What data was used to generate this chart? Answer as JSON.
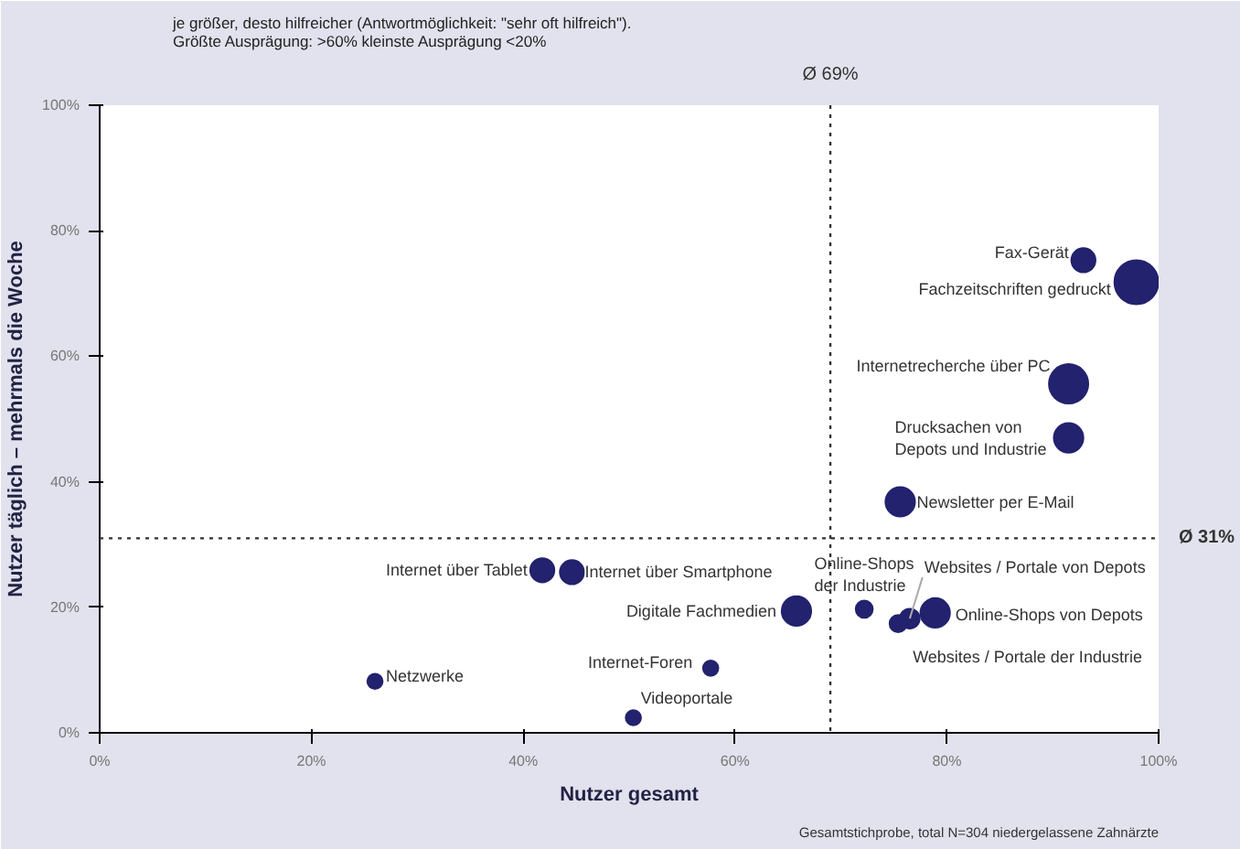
{
  "chart_data": {
    "type": "bubble",
    "xlabel": "Nutzer gesamt",
    "ylabel": "Nutzer täglich – mehrmals die Woche",
    "relative": false,
    "series": [
      {
        "name": "Fax-Gerät",
        "color": "#22226e",
        "x": [
          92.9
        ],
        "values": [
          75.3
        ],
        "sizes": [
          0.3
        ]
      },
      {
        "name": "Fachzeitschriften gedruckt",
        "color": "#22226e",
        "x": [
          97.9
        ],
        "values": [
          71.8
        ],
        "sizes": [
          1
        ]
      },
      {
        "name": "Internetrecherche über PC",
        "color": "#22226e",
        "x": [
          91.5
        ],
        "values": [
          55.6
        ],
        "sizes": [
          0.8
        ]
      },
      {
        "name": "Drucksachen von\nDepots und Industrie",
        "color": "#22226e",
        "x": [
          91.5
        ],
        "values": [
          47
        ],
        "sizes": [
          0.45
        ]
      },
      {
        "name": "Newsletter per E-Mail",
        "color": "#22226e",
        "x": [
          75.6
        ],
        "values": [
          36.8
        ],
        "sizes": [
          0.45
        ]
      },
      {
        "name": "Internet über Tablet",
        "color": "#22226e",
        "x": [
          41.8
        ],
        "values": [
          25.9
        ],
        "sizes": [
          0.3
        ]
      },
      {
        "name": "Internet über Smartphone",
        "color": "#22226e",
        "x": [
          44.6
        ],
        "values": [
          25.6
        ],
        "sizes": [
          0.3
        ]
      },
      {
        "name": "Digitale Fachmedien",
        "color": "#22226e",
        "x": [
          65.8
        ],
        "values": [
          19.4
        ],
        "sizes": [
          0.45
        ]
      },
      {
        "name": "Online-Shops\nder Industrie",
        "color": "#22226e",
        "x": [
          72.2
        ],
        "values": [
          19.7
        ],
        "sizes": [
          0.15
        ]
      },
      {
        "name": "Websites / Portale der Industrie",
        "color": "#22226e",
        "x": [
          75.4
        ],
        "values": [
          17.4
        ],
        "sizes": [
          0.15
        ]
      },
      {
        "name": "Websites / Portale von Depots",
        "color": "#22226e",
        "x": [
          76.5
        ],
        "values": [
          18.2
        ],
        "sizes": [
          0.2
        ]
      },
      {
        "name": "Online-Shops von Depots",
        "color": "#22226e",
        "x": [
          78.9
        ],
        "values": [
          19.1
        ],
        "sizes": [
          0.45
        ]
      },
      {
        "name": "Internet-Foren",
        "color": "#22226e",
        "x": [
          57.7
        ],
        "values": [
          10.3
        ],
        "sizes": [
          0.12
        ]
      },
      {
        "name": "Videoportale",
        "color": "#22226e",
        "x": [
          50.4
        ],
        "values": [
          2.4
        ],
        "sizes": [
          0.12
        ]
      },
      {
        "name": "Netzwerke",
        "color": "#22226e",
        "x": [
          26
        ],
        "values": [
          8.2
        ],
        "sizes": [
          0.12
        ]
      }
    ],
    "xlim": [
      0,
      100
    ],
    "ylim": [
      0,
      100
    ],
    "xticks": [
      {
        "value": 0,
        "label": "0%"
      },
      {
        "value": 20,
        "label": "20%"
      },
      {
        "value": 40,
        "label": "40%"
      },
      {
        "value": 60,
        "label": "60%"
      },
      {
        "value": 80,
        "label": "80%"
      },
      {
        "value": 100,
        "label": "100%"
      }
    ],
    "yticks": [
      {
        "value": 0,
        "label": "0%"
      },
      {
        "value": 20,
        "label": "20%"
      },
      {
        "value": 40,
        "label": "40%"
      },
      {
        "value": 60,
        "label": "60%"
      },
      {
        "value": 80,
        "label": "80%"
      },
      {
        "value": 100,
        "label": "100%"
      }
    ],
    "ref_lines": [
      {
        "axis": "x",
        "value": 69,
        "label": "Ø 69%",
        "line_style": "dotted"
      },
      {
        "axis": "y",
        "value": 31,
        "label": "Ø 31%",
        "line_style": "dotted"
      }
    ],
    "annotations": [
      "je größer, desto hilfreicher (Antwortmöglichkeit: \"sehr oft hilfreich\").\nGrößte Ausprägung: >60% kleinste Ausprägung <20%",
      "Gesamtstichprobe, total N=304 niedergelassene Zahnärzte"
    ],
    "grid": false
  }
}
